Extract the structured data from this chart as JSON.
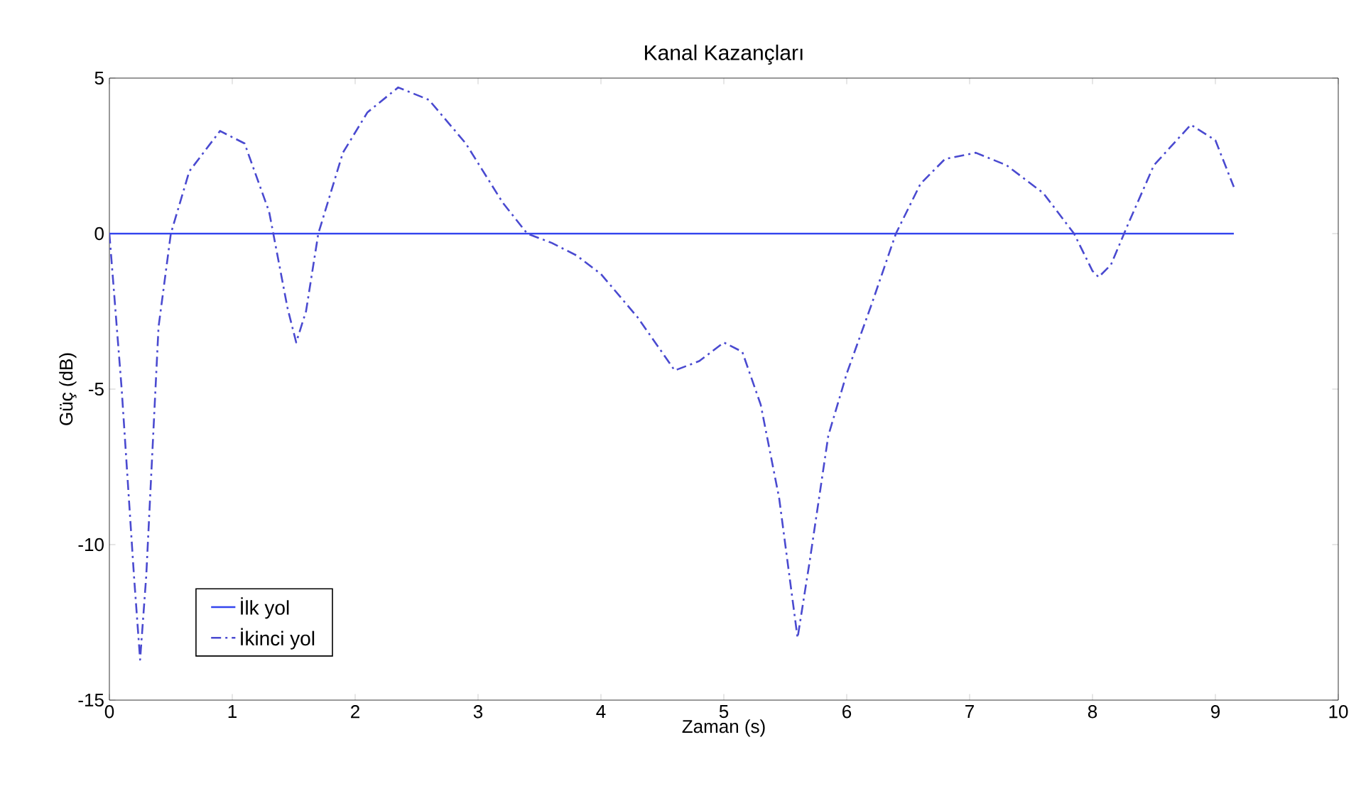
{
  "chart_data": {
    "type": "line",
    "title": "Kanal Kazançları",
    "xlabel": "Zaman (s)",
    "ylabel": "Güç (dB)",
    "xlim": [
      0,
      10
    ],
    "ylim": [
      -15,
      5
    ],
    "xticks": [
      0,
      1,
      2,
      3,
      4,
      5,
      6,
      7,
      8,
      9,
      10
    ],
    "yticks": [
      -15,
      -10,
      -5,
      0,
      5
    ],
    "grid": false,
    "legend": "bottom left",
    "marker": "none",
    "series": [
      {
        "name": "İlk yol",
        "color": "#3344ee",
        "line_style": "solid",
        "x": [
          0,
          9.15
        ],
        "values": [
          0,
          0
        ]
      },
      {
        "name": "İkinci yol",
        "color": "#4a4ad0",
        "line_style": "dashdot",
        "x": [
          0,
          0.1,
          0.2,
          0.25,
          0.3,
          0.4,
          0.5,
          0.65,
          0.9,
          1.1,
          1.3,
          1.45,
          1.52,
          1.6,
          1.7,
          1.9,
          2.1,
          2.35,
          2.6,
          2.9,
          3.2,
          3.4,
          3.6,
          3.8,
          4.0,
          4.3,
          4.6,
          4.8,
          5.0,
          5.15,
          5.3,
          5.45,
          5.6,
          5.7,
          5.85,
          6.0,
          6.2,
          6.4,
          6.6,
          6.8,
          7.05,
          7.3,
          7.6,
          7.85,
          8.0,
          8.05,
          8.15,
          8.3,
          8.5,
          8.8,
          9.0,
          9.15
        ],
        "values": [
          0,
          -5,
          -11,
          -13.7,
          -11,
          -3,
          0,
          2,
          3.3,
          2.9,
          0.7,
          -2.4,
          -3.5,
          -2.5,
          0,
          2.6,
          3.9,
          4.7,
          4.3,
          2.9,
          1,
          0,
          -0.3,
          -0.7,
          -1.3,
          -2.7,
          -4.4,
          -4.1,
          -3.5,
          -3.8,
          -5.5,
          -8.5,
          -13,
          -10.5,
          -6.5,
          -4.5,
          -2.3,
          0,
          1.6,
          2.4,
          2.6,
          2.2,
          1.3,
          0,
          -1.2,
          -1.4,
          -1,
          0.4,
          2.2,
          3.5,
          3,
          1.5
        ]
      }
    ]
  }
}
